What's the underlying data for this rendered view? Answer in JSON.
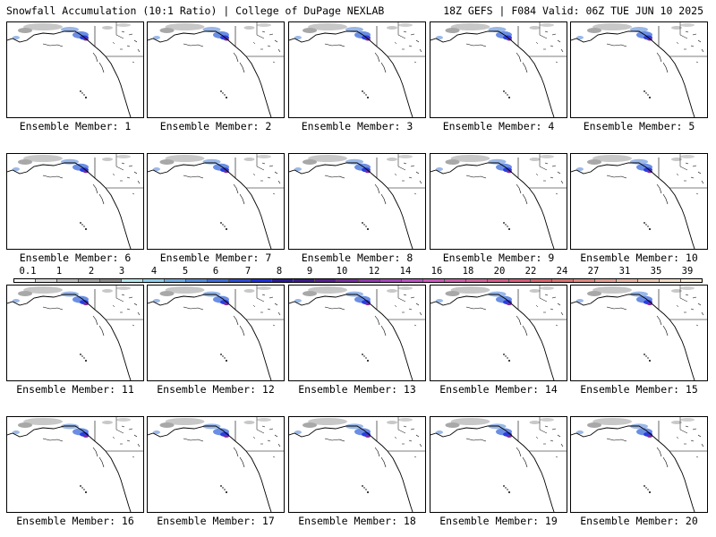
{
  "header": {
    "left_title": "Snowfall Accumulation (10:1 Ratio) | College of DuPage NEXLAB",
    "right_title": "18Z GEFS | F084 Valid: 06Z TUE JUN 10 2025"
  },
  "legend": {
    "tick_labels": [
      "0.1",
      "1",
      "2",
      "3",
      "4",
      "5",
      "6",
      "7",
      "8",
      "9",
      "10",
      "12",
      "14",
      "16",
      "18",
      "20",
      "22",
      "24",
      "27",
      "31",
      "35",
      "39"
    ],
    "colors": [
      "#ffffff",
      "#d9d9d9",
      "#bdbdbd",
      "#a3a3a3",
      "#8a8a8a",
      "#b0e8ee",
      "#8fd0f2",
      "#6aaeea",
      "#4f8de4",
      "#3d6de0",
      "#2a4ce0",
      "#1c2ee8",
      "#2a1aa0",
      "#3c1a90",
      "#5a1e96",
      "#7a2aa6",
      "#9636b6",
      "#ac44c2",
      "#c050c8",
      "#d058c0",
      "#d45cae",
      "#d8609c",
      "#dc5a8c",
      "#e0587c",
      "#e0606c",
      "#e07070",
      "#e48880",
      "#e89e90",
      "#ecb4a0",
      "#f0c8b0",
      "#f4dcc4",
      "#f8ecd8"
    ]
  },
  "members": [
    {
      "label": "Ensemble Member: 1"
    },
    {
      "label": "Ensemble Member: 2"
    },
    {
      "label": "Ensemble Member: 3"
    },
    {
      "label": "Ensemble Member: 4"
    },
    {
      "label": "Ensemble Member: 5"
    },
    {
      "label": "Ensemble Member: 6"
    },
    {
      "label": "Ensemble Member: 7"
    },
    {
      "label": "Ensemble Member: 8"
    },
    {
      "label": "Ensemble Member: 9"
    },
    {
      "label": "Ensemble Member: 10"
    },
    {
      "label": "Ensemble Member: 11"
    },
    {
      "label": "Ensemble Member: 12"
    },
    {
      "label": "Ensemble Member: 13"
    },
    {
      "label": "Ensemble Member: 14"
    },
    {
      "label": "Ensemble Member: 15"
    },
    {
      "label": "Ensemble Member: 16"
    },
    {
      "label": "Ensemble Member: 17"
    },
    {
      "label": "Ensemble Member: 18"
    },
    {
      "label": "Ensemble Member: 19"
    },
    {
      "label": "Ensemble Member: 20"
    }
  ]
}
